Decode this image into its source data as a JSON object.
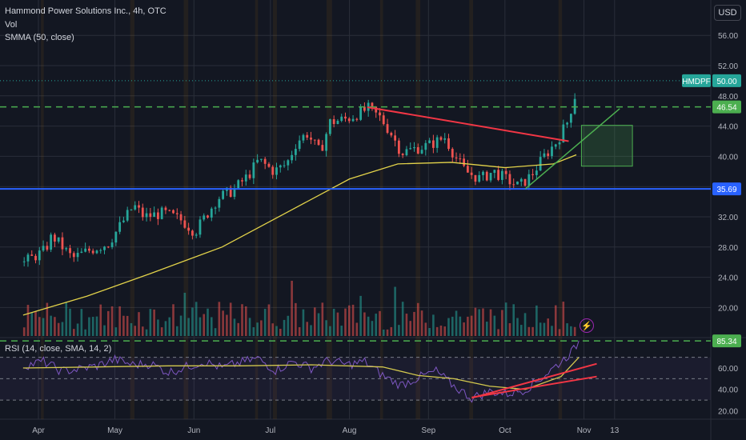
{
  "header": {
    "title": "Hammond Power Solutions Inc., 4h, OTC",
    "vol_label": "Vol",
    "smma_label": "SMMA (50, close)",
    "rsi_label": "RSI (14, close, SMA, 14, 2)",
    "currency": "USD"
  },
  "colors": {
    "background": "#131722",
    "up": "#26a69a",
    "down": "#ef5350",
    "smma": "#e3d34a",
    "rsi": "#7e57c2",
    "rsi_ma": "#d4c94e",
    "support_line": "#2962ff",
    "dashed_level": "#4caf50",
    "trendline_red": "#f23645",
    "trendline_green": "#4caf50",
    "target_box": "#4caf50"
  },
  "chart_data": [
    {
      "type": "candlestick",
      "symbol": "HMDPF",
      "interval": "4h",
      "x_ticks": [
        "Apr",
        "May",
        "Jun",
        "Jul",
        "Aug",
        "Sep",
        "Oct",
        "Nov",
        "13"
      ],
      "y_ticks": [
        "56.00",
        "52.00",
        "48.00",
        "44.00",
        "40.00",
        "36.00",
        "32.00",
        "28.00",
        "24.00",
        "20.00"
      ],
      "ylim": [
        17,
        58
      ],
      "price_labels": [
        {
          "name": "HMDPF",
          "value": "50.00"
        },
        {
          "name": "",
          "value": "46.54"
        },
        {
          "name": "",
          "value": "35.69"
        }
      ],
      "levels": {
        "resistance": 46.54,
        "support": 35.69,
        "last": 50.0
      },
      "close_path": [
        [
          "Mar 26",
          26.0
        ],
        [
          "Apr 3",
          27.5
        ],
        [
          "Apr 6",
          29.5
        ],
        [
          "Apr 10",
          28.0
        ],
        [
          "Apr 14",
          26.5
        ],
        [
          "Apr 20",
          27.5
        ],
        [
          "Apr 28",
          28.5
        ],
        [
          "May 3",
          31.0
        ],
        [
          "May 8",
          33.5
        ],
        [
          "May 12",
          32.0
        ],
        [
          "May 20",
          32.5
        ],
        [
          "May 27",
          31.5
        ],
        [
          "Jun 1",
          30.0
        ],
        [
          "Jun 6",
          32.5
        ],
        [
          "Jun 10",
          34.5
        ],
        [
          "Jun 16",
          35.5
        ],
        [
          "Jun 22",
          37.5
        ],
        [
          "Jun 26",
          39.5
        ],
        [
          "Jul 2",
          38.0
        ],
        [
          "Jul 7",
          39.0
        ],
        [
          "Jul 11",
          42.0
        ],
        [
          "Jul 15",
          43.0
        ],
        [
          "Jul 20",
          40.5
        ],
        [
          "Jul 24",
          44.5
        ],
        [
          "Jul 31",
          45.0
        ],
        [
          "Aug 3",
          45.5
        ],
        [
          "Aug 8",
          46.3
        ],
        [
          "Aug 13",
          45.0
        ],
        [
          "Aug 17",
          43.0
        ],
        [
          "Aug 21",
          40.5
        ],
        [
          "Aug 26",
          41.0
        ],
        [
          "Sep 1",
          41.5
        ],
        [
          "Sep 7",
          42.5
        ],
        [
          "Sep 11",
          40.0
        ],
        [
          "Sep 15",
          38.0
        ],
        [
          "Sep 21",
          37.0
        ],
        [
          "Sep 26",
          38.0
        ],
        [
          "Oct 1",
          37.0
        ],
        [
          "Oct 6",
          36.0
        ],
        [
          "Oct 11",
          37.5
        ],
        [
          "Oct 16",
          40.0
        ],
        [
          "Oct 21",
          42.0
        ],
        [
          "Oct 25",
          44.5
        ],
        [
          "Oct 28",
          48.0
        ],
        [
          "Oct 29",
          50.0
        ]
      ],
      "smma_path": [
        [
          "Mar 26",
          19.0
        ],
        [
          "Apr 20",
          21.5
        ],
        [
          "May 15",
          24.5
        ],
        [
          "Jun 12",
          28.0
        ],
        [
          "Jul 7",
          32.5
        ],
        [
          "Aug 1",
          37.0
        ],
        [
          "Aug 20",
          39.0
        ],
        [
          "Sep 10",
          39.2
        ],
        [
          "Oct 1",
          38.5
        ],
        [
          "Oct 20",
          39.0
        ],
        [
          "Oct 29",
          40.2
        ]
      ],
      "annotations": {
        "red_trendline": [
          [
            "Aug 8",
            46.5
          ],
          [
            "Oct 26",
            42.0
          ]
        ],
        "green_trendline": [
          [
            "Oct 9",
            35.7
          ],
          [
            "Nov 15",
            46.3
          ]
        ],
        "target_box": {
          "x0": "Oct 31",
          "x1": "Nov 20",
          "y_low": 38.7,
          "y_high": 44.1
        }
      }
    },
    {
      "type": "line",
      "title": "RSI (14, close, SMA, 14, 2)",
      "y_ticks": [
        "60.00",
        "40.00",
        "20.00"
      ],
      "ylim": [
        15,
        90
      ],
      "current_value": "85.34",
      "bands": [
        70,
        50,
        30
      ],
      "rsi_path": [
        [
          "Mar 26",
          62
        ],
        [
          "Apr 3",
          66
        ],
        [
          "Apr 10",
          57
        ],
        [
          "Apr 17",
          59
        ],
        [
          "Apr 24",
          62
        ],
        [
          "May 1",
          68
        ],
        [
          "May 8",
          63
        ],
        [
          "May 15",
          64
        ],
        [
          "May 22",
          56
        ],
        [
          "May 29",
          61
        ],
        [
          "Jun 5",
          66
        ],
        [
          "Jun 12",
          60
        ],
        [
          "Jun 19",
          65
        ],
        [
          "Jun 26",
          69
        ],
        [
          "Jul 3",
          58
        ],
        [
          "Jul 10",
          66
        ],
        [
          "Jul 17",
          60
        ],
        [
          "Jul 24",
          67
        ],
        [
          "Jul 31",
          63
        ],
        [
          "Aug 7",
          66
        ],
        [
          "Aug 14",
          53
        ],
        [
          "Aug 21",
          44
        ],
        [
          "Aug 28",
          51
        ],
        [
          "Sep 4",
          57
        ],
        [
          "Sep 11",
          43
        ],
        [
          "Sep 18",
          32
        ],
        [
          "Sep 25",
          38
        ],
        [
          "Oct 2",
          36
        ],
        [
          "Oct 9",
          40
        ],
        [
          "Oct 16",
          52
        ],
        [
          "Oct 23",
          66
        ],
        [
          "Oct 28",
          77
        ],
        [
          "Oct 30",
          85
        ]
      ],
      "rsi_ma_path": [
        [
          "Mar 26",
          60
        ],
        [
          "Apr 24",
          61
        ],
        [
          "May 22",
          62
        ],
        [
          "Jun 19",
          62
        ],
        [
          "Jul 17",
          63
        ],
        [
          "Aug 14",
          61
        ],
        [
          "Aug 28",
          53
        ],
        [
          "Sep 11",
          50
        ],
        [
          "Sep 25",
          43
        ],
        [
          "Oct 9",
          40
        ],
        [
          "Oct 23",
          52
        ],
        [
          "Oct 30",
          70
        ]
      ],
      "trendlines": [
        [
          [
            "Sep 18",
            32
          ],
          [
            "Nov 6",
            64
          ]
        ],
        [
          [
            "Sep 18",
            32.5
          ],
          [
            "Nov 6",
            52
          ]
        ]
      ]
    }
  ]
}
